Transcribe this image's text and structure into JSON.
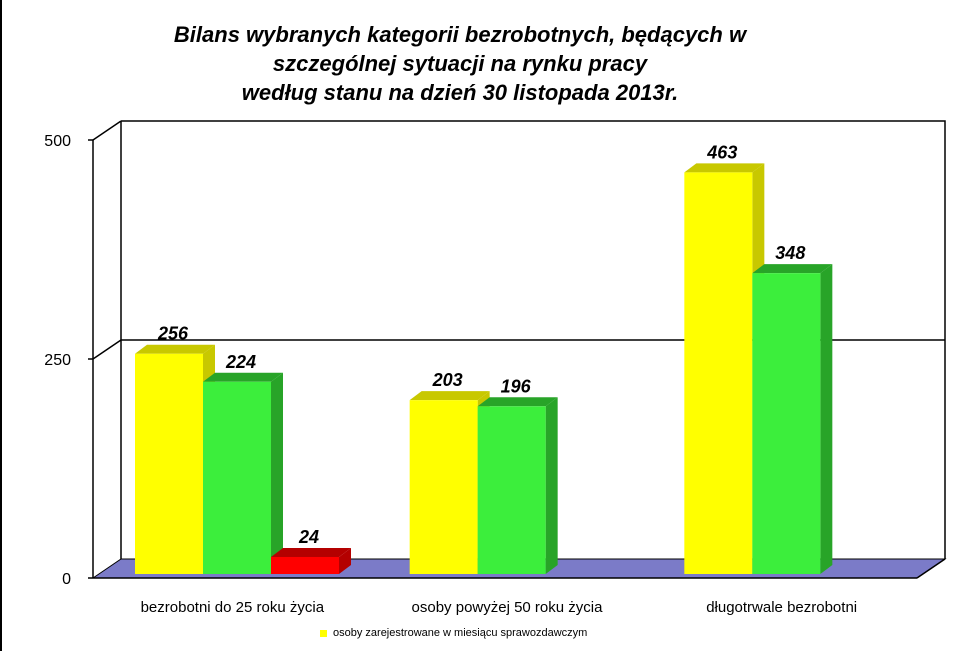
{
  "chart_data": {
    "type": "bar",
    "title_lines": [
      "Bilans wybranych kategorii bezrobotnych, będących w",
      "szczególnej sytuacji na rynku pracy",
      "według stanu na dzień 30 listopada 2013r."
    ],
    "categories": [
      "bezrobotni do 25 roku życia",
      "osoby powyżej 50 roku życia",
      "długotrwale bezrobotni"
    ],
    "series": [
      {
        "name": "osoby zarejestrowane  w miesiącu sprawozdawczym",
        "values": [
          256,
          203,
          463
        ],
        "color": "#ffff00",
        "side_color": "#c8c800"
      },
      {
        "name": "",
        "values": [
          224,
          196,
          348
        ],
        "color": "#3cee3c",
        "side_color": "#28a428"
      },
      {
        "name": "",
        "values": [
          24,
          null,
          null
        ],
        "color": "#ff0000",
        "side_color": "#b40000"
      }
    ],
    "data_labels": [
      [
        "256",
        "203",
        "463"
      ],
      [
        "224",
        "196",
        "348"
      ],
      [
        "24",
        "",
        ""
      ]
    ],
    "y_ticks": [
      "0",
      "250",
      "500"
    ],
    "ylim": [
      0,
      500
    ],
    "grid": "major horizontal",
    "floor_color": "#7b7bc8",
    "legend_position": "bottom"
  }
}
